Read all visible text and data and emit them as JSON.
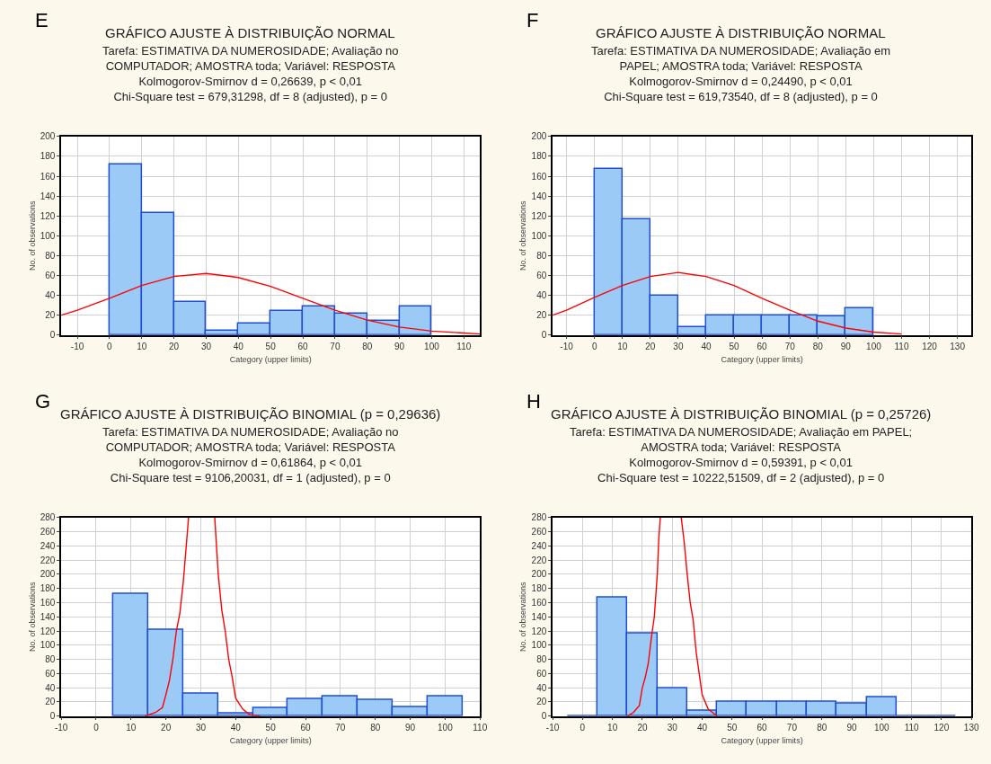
{
  "chart_data": [
    {
      "type": "histogram",
      "title": "GRÁFICO AJUSTE À DISTRIBUIÇÃO NORMAL",
      "subtitle": "Tarefa: ESTIMATIVA DA NUMEROSIDADE; Avaliação no\nCOMPUTADOR; AMOSTRA toda; Variável: RESPOSTA\nKolmogorov-Smirnov d = 0,26639, p < 0,01\nChi-Square test = 679,31298, df = 8 (adjusted), p = 0",
      "annotations": [
        "E"
      ],
      "xlabel": "Category (upper limits)",
      "ylabel": "No. of observations",
      "bins": [
        0,
        10,
        20,
        30,
        40,
        50,
        60,
        70,
        80,
        90,
        100
      ],
      "values": [
        172,
        123,
        33,
        4,
        12,
        24,
        29,
        22,
        14,
        29
      ],
      "color": "#9ccaf6",
      "series": [
        {
          "type": "line",
          "color": "#ff0000",
          "x": [
            -15,
            -10,
            0,
            10,
            20,
            30,
            40,
            50,
            60,
            70,
            80,
            90,
            100,
            110,
            115
          ],
          "values": [
            20,
            25,
            37,
            50,
            59,
            62,
            58,
            49,
            37,
            25,
            15,
            8,
            4,
            2,
            1
          ]
        }
      ],
      "xlim": [
        -15,
        115
      ],
      "xticks": [
        -10,
        0,
        10,
        20,
        30,
        40,
        50,
        60,
        70,
        80,
        90,
        100,
        110
      ],
      "ylim": [
        0,
        200
      ],
      "yticks": [
        0,
        20,
        40,
        60,
        80,
        100,
        120,
        140,
        160,
        180,
        200
      ],
      "grid": true
    },
    {
      "type": "histogram",
      "title": "GRÁFICO AJUSTE À DISTRIBUIÇÃO NORMAL",
      "subtitle": "Tarefa: ESTIMATIVA DA NUMEROSIDADE; Avaliação em\nPAPEL; AMOSTRA toda; Variável: RESPOSTA\nKolmogorov-Smirnov d = 0,24490, p < 0,01\nChi-Square test = 619,73540, df = 8 (adjusted), p = 0",
      "annotations": [
        "F"
      ],
      "xlabel": "Category (upper limits)",
      "ylabel": "No. of observations",
      "bins": [
        0,
        10,
        20,
        30,
        40,
        50,
        60,
        70,
        80,
        90,
        100
      ],
      "values": [
        167,
        117,
        40,
        8,
        20,
        20,
        20,
        20,
        19,
        27
      ],
      "color": "#9ccaf6",
      "series": [
        {
          "type": "line",
          "color": "#ff0000",
          "x": [
            -15,
            -10,
            0,
            10,
            20,
            30,
            40,
            50,
            60,
            70,
            80,
            90,
            100,
            110
          ],
          "values": [
            20,
            25,
            38,
            50,
            59,
            63,
            59,
            50,
            37,
            25,
            14,
            7,
            3,
            1
          ]
        }
      ],
      "xlim": [
        -15,
        135
      ],
      "xticks": [
        -10,
        0,
        10,
        20,
        30,
        40,
        50,
        60,
        70,
        80,
        90,
        100,
        110,
        120,
        130
      ],
      "ylim": [
        0,
        200
      ],
      "yticks": [
        0,
        20,
        40,
        60,
        80,
        100,
        120,
        140,
        160,
        180,
        200
      ],
      "grid": true
    },
    {
      "type": "histogram",
      "title": "GRÁFICO AJUSTE À DISTRIBUIÇÃO BINOMIAL (p = 0,29636)",
      "subtitle": "Tarefa: ESTIMATIVA DA NUMEROSIDADE; Avaliação no\nCOMPUTADOR; AMOSTRA toda; Variável: RESPOSTA\nKolmogorov-Smirnov d = 0,61864, p < 0,01\nChi-Square test = 9106,20031, df = 1 (adjusted), p = 0",
      "annotations": [
        "G"
      ],
      "xlabel": "Category (upper limits)",
      "ylabel": "No. of observations",
      "bins": [
        5,
        15,
        25,
        35,
        45,
        55,
        65,
        75,
        85,
        95,
        105
      ],
      "values": [
        172,
        122,
        32,
        3,
        11,
        24,
        28,
        22,
        12,
        28
      ],
      "color": "#9ccaf6",
      "series": [
        {
          "type": "line",
          "color": "#ff0000",
          "x": [
            14,
            17,
            19,
            20,
            21,
            22,
            23,
            24,
            25,
            26,
            26.5,
            30,
            34,
            35,
            36,
            37,
            38,
            39,
            40,
            42,
            44,
            47
          ],
          "values": [
            0,
            5,
            12,
            30,
            50,
            80,
            120,
            145,
            190,
            250,
            280,
            null,
            280,
            200,
            150,
            120,
            80,
            55,
            25,
            10,
            2,
            0
          ]
        }
      ],
      "xlim": [
        -10,
        110
      ],
      "xticks": [
        -10,
        0,
        10,
        20,
        30,
        40,
        50,
        60,
        70,
        80,
        90,
        100,
        110
      ],
      "ylim": [
        0,
        280
      ],
      "yticks": [
        0,
        20,
        40,
        60,
        80,
        100,
        120,
        140,
        160,
        180,
        200,
        220,
        240,
        260,
        280
      ],
      "grid": true
    },
    {
      "type": "histogram",
      "title": "GRÁFICO AJUSTE À DISTRIBUIÇÃO BINOMIAL (p = 0,25726)",
      "subtitle": "Tarefa: ESTIMATIVA DA NUMEROSIDADE; Avaliação em PAPEL;\nAMOSTRA toda; Variável: RESPOSTA\nKolmogorov-Smirnov d = 0,59391, p < 0,01\nChi-Square test = 10222,51509, df = 2 (adjusted), p = 0",
      "annotations": [
        "H"
      ],
      "xlabel": "Category (upper limits)",
      "ylabel": "No. of observations",
      "bins": [
        -5,
        5,
        15,
        25,
        35,
        45,
        55,
        65,
        75,
        85,
        95,
        105,
        115,
        125
      ],
      "values": [
        0,
        167,
        117,
        39,
        8,
        20,
        20,
        20,
        20,
        18,
        27,
        0,
        0
      ],
      "colors": [
        "#1f4fd1",
        "#9ccaf6",
        "#9ccaf6",
        "#9ccaf6",
        "#9ccaf6",
        "#9ccaf6",
        "#9ccaf6",
        "#9ccaf6",
        "#9ccaf6",
        "#9ccaf6",
        "#9ccaf6",
        "#1f4fd1",
        "#1f4fd1"
      ],
      "series": [
        {
          "type": "line",
          "color": "#ff0000",
          "x": [
            15,
            17,
            19,
            20,
            21,
            22,
            23,
            24,
            25,
            25.5,
            26,
            30,
            33,
            34,
            35,
            36,
            37,
            38,
            39,
            40,
            42,
            45
          ],
          "values": [
            0,
            5,
            15,
            40,
            55,
            75,
            110,
            140,
            200,
            250,
            280,
            null,
            280,
            245,
            200,
            160,
            135,
            90,
            60,
            30,
            10,
            0
          ]
        }
      ],
      "xlim": [
        -10,
        130
      ],
      "xticks": [
        -10,
        0,
        10,
        20,
        30,
        40,
        50,
        60,
        70,
        80,
        90,
        100,
        110,
        120,
        130
      ],
      "ylim": [
        0,
        280
      ],
      "yticks": [
        0,
        20,
        40,
        60,
        80,
        100,
        120,
        140,
        160,
        180,
        200,
        220,
        240,
        260,
        280
      ],
      "grid": true
    }
  ]
}
